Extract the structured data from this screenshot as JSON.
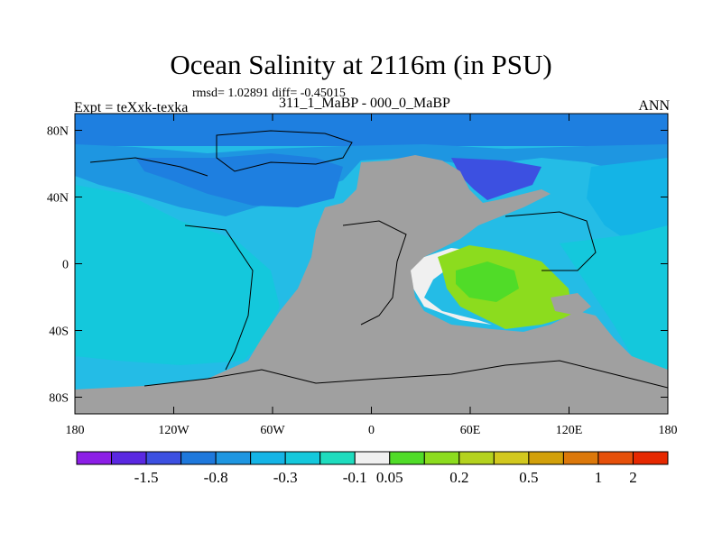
{
  "title": "Ocean Salinity at 2116m (in PSU)",
  "stats": "rmsd= 1.02891 diff= -0.45015",
  "experiment": "Expt = teXxk-texka",
  "subtitle": "311_1_MaBP - 000_0_MaBP",
  "season": "ANN",
  "map": {
    "lon_range": [
      -180,
      180
    ],
    "lat_range": [
      -90,
      90
    ],
    "x_ticks": [
      {
        "lon": -180,
        "label": "180"
      },
      {
        "lon": -120,
        "label": "120W"
      },
      {
        "lon": -60,
        "label": "60W"
      },
      {
        "lon": 0,
        "label": "0"
      },
      {
        "lon": 60,
        "label": "60E"
      },
      {
        "lon": 120,
        "label": "120E"
      },
      {
        "lon": 180,
        "label": "180"
      }
    ],
    "y_ticks": [
      {
        "lat": 80,
        "label": "80N"
      },
      {
        "lat": 40,
        "label": "40N"
      },
      {
        "lat": 0,
        "label": "0"
      },
      {
        "lat": -40,
        "label": "40S"
      },
      {
        "lat": -80,
        "label": "80S"
      }
    ],
    "land_color": "#a0a0a0",
    "background_field_color": "#24bce6"
  },
  "colorbar": {
    "colors": [
      "#8c1ee6",
      "#5a28e1",
      "#3c50e1",
      "#1e78dc",
      "#1e96e1",
      "#14b4e6",
      "#14c8dc",
      "#1edcbe",
      "#f0f0f0",
      "#50dc28",
      "#8cdc1e",
      "#b4d21e",
      "#d2c81e",
      "#d2a00a",
      "#dc780a",
      "#e6500a",
      "#e62800"
    ],
    "labels": [
      {
        "after_box": 2,
        "text": "-1.5"
      },
      {
        "after_box": 4,
        "text": "-0.8"
      },
      {
        "after_box": 6,
        "text": "-0.3"
      },
      {
        "after_box": 8,
        "text": "-0.1"
      },
      {
        "after_box": 9,
        "text": "0.05"
      },
      {
        "after_box": 11,
        "text": "0.2"
      },
      {
        "after_box": 13,
        "text": "0.5"
      },
      {
        "after_box": 15,
        "text": "1"
      },
      {
        "after_box": 16,
        "text": "2"
      }
    ]
  }
}
